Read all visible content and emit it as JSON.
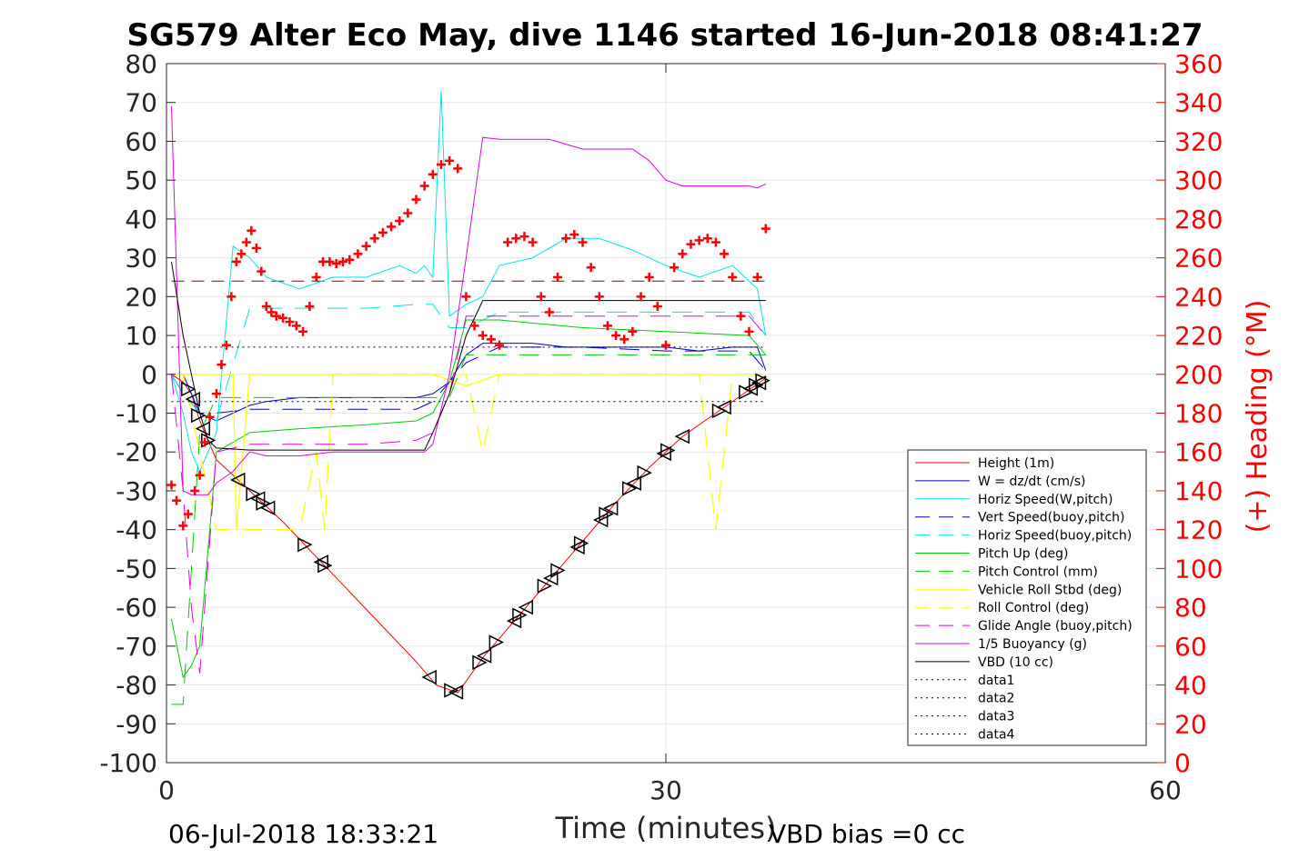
{
  "chart_data": {
    "type": "line",
    "title": "SG579 Alter Eco May, dive 1146 started 16-Jun-2018 08:41:27",
    "xlabel": "Time (minutes)",
    "ylabel_right": "(+) Heading (°M)",
    "xlim": [
      0,
      60
    ],
    "ylim": [
      -100,
      80
    ],
    "ylim_right": [
      0,
      360
    ],
    "x_ticks": [
      "0",
      "30",
      "60"
    ],
    "y_ticks": [
      "80",
      "70",
      "60",
      "50",
      "40",
      "30",
      "20",
      "10",
      "0",
      "-10",
      "-20",
      "-30",
      "-40",
      "-50",
      "-60",
      "-70",
      "-80",
      "-90",
      "-100"
    ],
    "y_ticks_right": [
      "360",
      "340",
      "320",
      "300",
      "280",
      "260",
      "240",
      "220",
      "200",
      "180",
      "160",
      "140",
      "120",
      "100",
      "80",
      "60",
      "40",
      "20",
      "0"
    ],
    "grid": true,
    "legend_position": "lower-right",
    "footer_left": "06-Jul-2018 18:33:21",
    "footer_right": "VBD bias =0 cc",
    "colors": {
      "height": "#ff0000",
      "w": "#0000cc",
      "horiz_w": "#00e5e5",
      "vert_buoy": "#0000cc",
      "horiz_buoy": "#00e5e5",
      "pitch": "#00cc00",
      "pitch_ctrl": "#00cc00",
      "roll": "#ffff00",
      "roll_ctrl": "#ffff00",
      "glide": "#e600e6",
      "buoyancy": "#e600e6",
      "vbd": "#000000",
      "heading": "#ff0000",
      "dive_line": "#8b0000"
    },
    "series": [
      {
        "name": "Height (1m)",
        "key": "height",
        "style": "solid",
        "x": [
          0.3,
          1,
          1.5,
          2,
          3,
          5,
          7,
          9,
          11,
          13,
          15,
          16.2,
          17.5,
          19,
          21,
          23,
          25,
          27,
          29,
          31,
          33,
          35,
          36
        ],
        "values": [
          0,
          -2,
          -5,
          -12,
          -22,
          -30,
          -38,
          -47,
          -56,
          -65,
          -74,
          -80,
          -82,
          -73,
          -63,
          -53,
          -43,
          -33,
          -24,
          -16,
          -10,
          -4,
          -1
        ]
      },
      {
        "name": "W = dz/dt (cm/s)",
        "key": "w",
        "style": "solid",
        "x": [
          0.3,
          1,
          1.5,
          2,
          2.5,
          3,
          4,
          5,
          6,
          8,
          10,
          12,
          14,
          15,
          16,
          17,
          18,
          19,
          20,
          21,
          22,
          24,
          26,
          28,
          30,
          32,
          34,
          35.5,
          36
        ],
        "values": [
          0,
          0,
          -5,
          -10,
          -11,
          -12,
          -10,
          -8,
          -7,
          -6,
          -6,
          -6,
          -6,
          -6,
          -5,
          -2,
          5,
          8,
          8,
          8,
          8,
          7,
          7,
          7,
          7,
          6,
          7,
          7,
          1
        ]
      },
      {
        "name": "Horiz Speed(W,pitch)",
        "key": "horiz_w",
        "style": "solid",
        "x": [
          0.3,
          1,
          1.5,
          2,
          3,
          4,
          5,
          6,
          8,
          10,
          12,
          14,
          15,
          15.5,
          16,
          16.5,
          17,
          18,
          19,
          20,
          22,
          24,
          26,
          28,
          30,
          32,
          34,
          35.5,
          36
        ],
        "values": [
          0,
          -10,
          -20,
          -25,
          -15,
          33,
          30,
          25,
          22,
          25,
          25,
          28,
          26,
          28,
          25,
          73,
          15,
          18,
          20,
          28,
          30,
          35,
          35,
          32,
          28,
          25,
          28,
          22,
          10
        ]
      },
      {
        "name": "Vert Speed(buoy,pitch)",
        "key": "vert_buoy",
        "style": "dashed",
        "x": [
          0.3,
          1,
          2,
          3,
          5,
          8,
          12,
          15,
          16,
          17,
          18,
          20,
          25,
          30,
          35,
          36
        ],
        "values": [
          0,
          -5,
          -10,
          -10,
          -9,
          -9,
          -9,
          -9,
          -7,
          -2,
          3,
          7,
          7,
          6,
          6,
          1
        ]
      },
      {
        "name": "Horiz Speed(buoy,pitch)",
        "key": "horiz_buoy",
        "style": "dashed",
        "x": [
          0.3,
          1,
          2,
          3,
          5,
          8,
          12,
          15,
          16,
          17,
          18,
          20,
          25,
          30,
          35,
          36
        ],
        "values": [
          0,
          -5,
          -10,
          -12,
          17,
          17,
          17,
          18,
          18,
          12,
          12,
          16,
          16,
          16,
          16,
          10
        ]
      },
      {
        "name": "Pitch Up (deg)",
        "key": "pitch",
        "style": "solid",
        "x": [
          0.3,
          1,
          1.5,
          2,
          3,
          5,
          8,
          12,
          15,
          16,
          17,
          18,
          20,
          25,
          30,
          35,
          36
        ],
        "values": [
          -63,
          -78,
          -75,
          -70,
          -20,
          -15,
          -14,
          -13,
          -12,
          -10,
          -2,
          14,
          14,
          12,
          11,
          10,
          5
        ]
      },
      {
        "name": "Pitch Control (mm)",
        "key": "pitch_ctrl",
        "style": "dashed",
        "x": [
          0.3,
          1,
          2,
          3,
          5,
          10,
          15,
          16,
          17,
          18,
          20,
          25,
          30,
          35,
          36
        ],
        "values": [
          -85,
          -85,
          -15,
          -6,
          -6,
          -6,
          -6,
          -6,
          -6,
          5,
          5,
          5,
          5,
          5,
          5
        ]
      },
      {
        "name": "Vehicle Roll Stbd (deg)",
        "key": "roll",
        "style": "solid",
        "x": [
          0.3,
          1,
          2,
          3,
          4,
          4.2,
          5,
          6,
          10,
          14,
          15,
          16,
          18,
          20,
          22,
          24,
          26,
          28,
          30,
          32,
          34,
          35,
          36
        ],
        "values": [
          0,
          0,
          0,
          0,
          0,
          -40,
          0,
          0,
          0,
          0,
          0,
          0,
          -3,
          0,
          0,
          0,
          0,
          0,
          0,
          0,
          0,
          0,
          0
        ]
      },
      {
        "name": "Roll Control (deg)",
        "key": "roll_ctrl",
        "style": "dashed",
        "x": [
          0.3,
          1,
          2,
          3,
          5,
          8,
          9,
          9.5,
          10,
          15,
          16,
          18,
          19,
          20,
          22,
          24,
          26,
          28,
          30,
          32,
          33,
          34,
          35,
          36
        ],
        "values": [
          0,
          0,
          -20,
          -40,
          -40,
          -40,
          -20,
          -40,
          0,
          0,
          0,
          0,
          -20,
          0,
          0,
          0,
          0,
          0,
          0,
          0,
          -40,
          0,
          0,
          0
        ]
      },
      {
        "name": "Glide Angle (buoy,pitch)",
        "key": "glide",
        "style": "dashed",
        "x": [
          0.3,
          1,
          1.5,
          2,
          3,
          5,
          8,
          12,
          15,
          16,
          17,
          18,
          20,
          25,
          30,
          35,
          36
        ],
        "values": [
          0,
          -30,
          -60,
          -77,
          -20,
          -18,
          -18,
          -18,
          -17,
          -15,
          -5,
          15,
          15,
          15,
          15,
          15,
          10
        ]
      },
      {
        "name": "1/5 Buoyancy (g)",
        "key": "buoyancy",
        "style": "solid",
        "x": [
          0.3,
          1,
          1.5,
          2,
          2.5,
          3,
          4,
          5,
          6,
          8,
          10,
          12,
          14,
          15,
          15.5,
          16,
          17,
          18,
          19,
          20,
          23,
          25,
          27,
          28,
          29,
          30,
          31,
          35,
          35.5,
          36
        ],
        "values": [
          69,
          -30,
          -31,
          -31,
          -31,
          -28,
          -25,
          -20,
          -21,
          -21,
          -20,
          -20,
          -20,
          -20,
          -20,
          -18,
          0,
          30,
          61,
          60.5,
          60.5,
          58,
          58,
          58,
          55,
          50,
          48.5,
          48.5,
          48,
          49
        ]
      },
      {
        "name": "VBD (10 cc)",
        "key": "vbd",
        "style": "solid",
        "x": [
          0.3,
          1,
          1.5,
          2,
          2.5,
          3,
          5,
          8,
          12,
          15,
          15.5,
          16,
          17,
          18,
          19,
          20,
          25,
          30,
          35,
          36
        ],
        "values": [
          29,
          10,
          0,
          -10,
          -17,
          -19,
          -19.5,
          -19.5,
          -19.5,
          -19.5,
          -19.5,
          -15,
          -5,
          10,
          19,
          19,
          19,
          19,
          19,
          19
        ]
      },
      {
        "name": "data1",
        "key": "data1",
        "style": "dotted",
        "x": [],
        "values": []
      },
      {
        "name": "data2",
        "key": "data2",
        "style": "dotted",
        "x": [],
        "values": []
      },
      {
        "name": "data3",
        "key": "data3",
        "style": "dotted",
        "x": [
          0.3,
          36
        ],
        "values": [
          7,
          7
        ]
      },
      {
        "name": "data4",
        "key": "data4",
        "style": "dotted",
        "x": [
          0.3,
          36
        ],
        "values": [
          -7,
          -7
        ]
      }
    ],
    "heading": {
      "axis": "right",
      "x": [
        0.3,
        0.6,
        1,
        1.3,
        1.7,
        2,
        2.3,
        2.6,
        3,
        3.3,
        3.6,
        3.9,
        4.2,
        4.5,
        4.8,
        5.1,
        5.4,
        5.7,
        6,
        6.3,
        6.6,
        7,
        7.4,
        7.8,
        8.2,
        8.6,
        9,
        9.4,
        9.8,
        10.2,
        10.6,
        11,
        11.5,
        12,
        12.5,
        13,
        13.5,
        14,
        14.5,
        15,
        15.5,
        16,
        16.5,
        17,
        17.5,
        18,
        18.5,
        19,
        19.5,
        20,
        20.5,
        21,
        21.5,
        22,
        22.5,
        23,
        23.5,
        24,
        24.5,
        25,
        25.5,
        26,
        26.5,
        27,
        27.5,
        28,
        28.5,
        29,
        29.5,
        30,
        30.5,
        31,
        31.5,
        32,
        32.5,
        33,
        33.5,
        34,
        34.5,
        35,
        35.5,
        36
      ],
      "values": [
        143,
        135,
        122,
        128,
        140,
        148,
        165,
        178,
        190,
        205,
        215,
        240,
        258,
        262,
        268,
        274,
        265,
        253,
        235,
        232,
        230,
        229,
        227,
        225,
        222,
        235,
        250,
        258,
        258,
        257,
        258,
        259,
        262,
        266,
        270,
        273,
        276,
        279,
        283,
        290,
        297,
        303,
        308,
        310,
        306,
        240,
        225,
        220,
        218,
        215,
        268,
        270,
        271,
        268,
        240,
        232,
        250,
        270,
        272,
        268,
        255,
        240,
        225,
        220,
        218,
        222,
        240,
        250,
        235,
        215,
        255,
        262,
        267,
        269,
        270,
        268,
        262,
        250,
        230,
        222,
        250,
        275
      ]
    },
    "dive_line_y": 24,
    "triangle_markers_x": [
      1.3,
      1.6,
      1.9,
      2.2,
      2.5,
      4.3,
      5.2,
      5.5,
      5.8,
      6.1,
      8.3,
      9.3,
      9.5,
      15.8,
      17.1,
      17.4,
      18.8,
      19.1,
      19.8,
      20.9,
      21.2,
      21.6,
      22.7,
      23.1,
      23.5,
      24.7,
      24.9,
      26.1,
      26.4,
      26.7,
      27.8,
      28.1,
      28.7,
      29.9,
      30.1,
      31,
      33.2,
      33.5,
      34.8,
      35.1,
      35.4,
      35.6,
      35.8
    ]
  }
}
